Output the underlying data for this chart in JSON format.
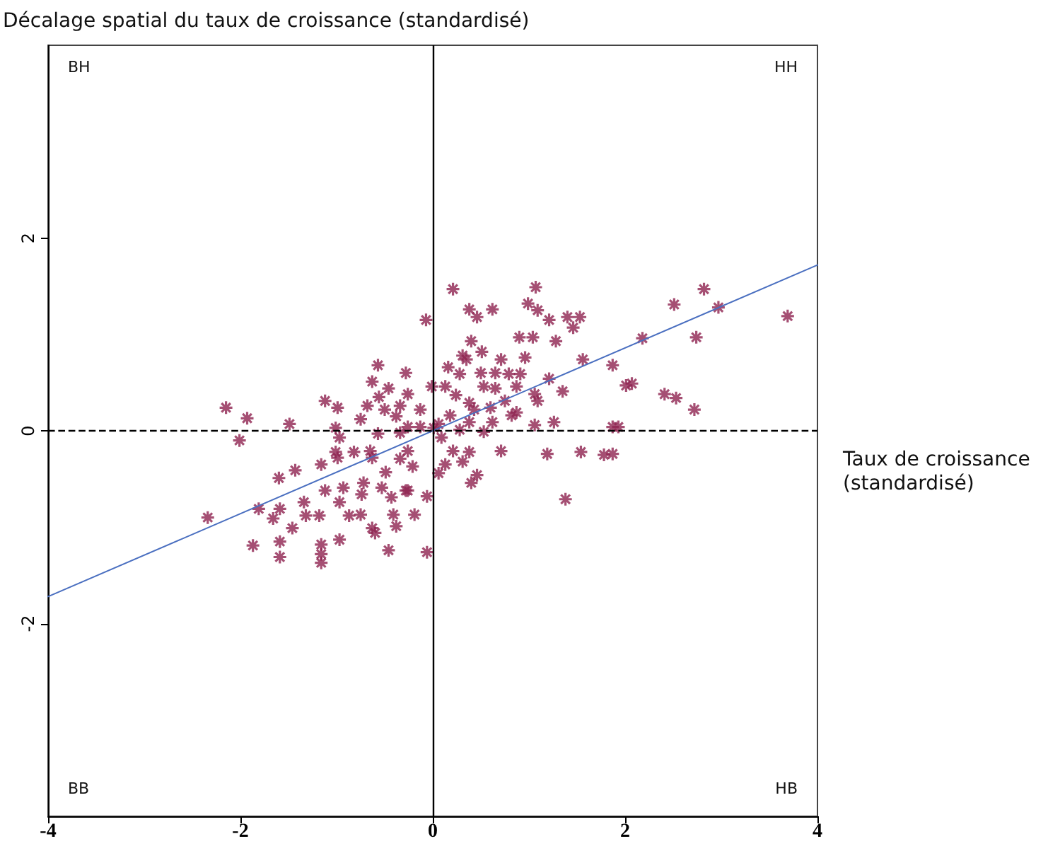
{
  "chart_data": {
    "type": "scatter",
    "ylabel": "Décalage spatial du taux de croissance (standardisé)",
    "xlabel": "Taux de croissance (standardisé)",
    "annotations": [
      "BH",
      "HH",
      "BB",
      "HB"
    ],
    "xlim": [
      -4,
      4
    ],
    "xticks": [
      -4,
      -2,
      0,
      2,
      4
    ],
    "ylim": [
      -4,
      4
    ],
    "yticks": [
      -2,
      0,
      2
    ],
    "grid": false,
    "ref_lines": [
      {
        "axis": "x",
        "value": 0,
        "color": "#000000",
        "line_style": "solid"
      },
      {
        "axis": "y",
        "value": 0,
        "color": "#000000",
        "line_style": "dashed"
      }
    ],
    "series": [
      {
        "color": "#8e2350",
        "marker": "cross",
        "x": [
          -2.15,
          -1.93,
          -2.01,
          -1.49,
          -2.34,
          -1.81,
          -1.6,
          -1.43,
          -1.16,
          -1.87,
          -1.59,
          -1.59,
          -1.59,
          -1.34,
          -1.32,
          -1.46,
          -1.66,
          -1.16,
          -1.16,
          -1.16,
          -1.12,
          -1.18,
          -0.97,
          -0.97,
          -0.93,
          -0.75,
          -0.74,
          -0.63,
          -0.46,
          -0.41,
          -0.53,
          -0.57,
          -0.63,
          -0.46,
          -0.56,
          -1.12,
          -0.99,
          -0.75,
          -0.68,
          -0.5,
          -1.01,
          -0.99,
          -0.82,
          -0.65,
          -0.63,
          -0.49,
          -0.34,
          -0.34,
          -0.28,
          -0.57,
          -0.38,
          -1.01,
          -0.34,
          -0.97,
          -0.72,
          -0.43,
          -0.28,
          -0.38,
          -0.6,
          -0.87,
          0.21,
          1.07,
          -0.07,
          0.38,
          0.46,
          0.62,
          0.99,
          1.09,
          1.21,
          1.4,
          1.53,
          1.46,
          0.9,
          1.04,
          1.28,
          0.4,
          0.96,
          1.56,
          0.31,
          0.35,
          0.51,
          0.71,
          0.16,
          0.28,
          0.5,
          0.65,
          0.79,
          0.91,
          1.21,
          -0.01,
          0.13,
          0.53,
          0.65,
          0.87,
          1.06,
          1.35,
          1.09,
          -0.26,
          -0.13,
          0.24,
          0.38,
          0.43,
          0.6,
          0.75,
          0.82,
          0.87,
          0.62,
          0.38,
          0.18,
          0.06,
          0.01,
          0.09,
          0.28,
          0.53,
          1.06,
          1.26,
          1.87,
          -0.13,
          -0.26,
          0.21,
          0.38,
          0.31,
          0.71,
          1.19,
          1.54,
          1.78,
          0.13,
          0.06,
          0.46,
          0.4,
          -0.06,
          -0.19,
          -0.26,
          -0.21,
          1.38,
          -0.06,
          -0.26,
          2.82,
          2.51,
          2.97,
          3.69,
          2.18,
          2.74,
          1.87,
          2.01,
          2.07,
          2.41,
          2.53,
          2.72,
          1.93,
          1.87
        ],
        "values": [
          0.24,
          0.13,
          -0.1,
          0.07,
          -0.9,
          -0.81,
          -0.49,
          -0.41,
          -0.35,
          -1.19,
          -1.31,
          -0.81,
          -1.15,
          -0.74,
          -0.88,
          -1.01,
          -0.91,
          -1.18,
          -1.28,
          -1.37,
          -0.62,
          -0.88,
          -0.74,
          -1.13,
          -0.59,
          -0.87,
          -0.66,
          -1.01,
          -1.24,
          -0.87,
          -0.59,
          0.68,
          0.51,
          0.44,
          0.35,
          0.31,
          0.24,
          0.12,
          0.26,
          0.22,
          -0.22,
          -0.28,
          -0.22,
          -0.21,
          -0.28,
          -0.43,
          -0.29,
          0.26,
          0.6,
          -0.03,
          0.15,
          0.03,
          -0.02,
          -0.07,
          -0.54,
          -0.69,
          -0.62,
          -0.99,
          -1.06,
          -0.88,
          1.47,
          1.49,
          1.15,
          1.26,
          1.18,
          1.26,
          1.32,
          1.25,
          1.15,
          1.18,
          1.18,
          1.07,
          0.97,
          0.97,
          0.93,
          0.93,
          0.76,
          0.74,
          0.78,
          0.74,
          0.82,
          0.74,
          0.66,
          0.59,
          0.6,
          0.6,
          0.59,
          0.59,
          0.54,
          0.46,
          0.46,
          0.46,
          0.44,
          0.46,
          0.38,
          0.41,
          0.31,
          0.38,
          0.22,
          0.37,
          0.29,
          0.22,
          0.24,
          0.31,
          0.16,
          0.19,
          0.09,
          0.09,
          0.16,
          0.07,
          0.03,
          -0.07,
          0.01,
          -0.01,
          0.06,
          0.09,
          0.04,
          0.04,
          0.04,
          -0.21,
          -0.22,
          -0.32,
          -0.21,
          -0.24,
          -0.22,
          -0.25,
          -0.35,
          -0.44,
          -0.46,
          -0.54,
          -0.68,
          -0.87,
          -0.62,
          -0.37,
          -0.71,
          -1.26,
          -0.21,
          1.47,
          1.31,
          1.28,
          1.19,
          0.96,
          0.97,
          0.68,
          0.47,
          0.49,
          0.38,
          0.34,
          0.22,
          0.04,
          -0.24
        ]
      },
      {
        "type": "line",
        "color": "#4a6fc0",
        "marker": "none",
        "line_style": "solid",
        "x": [
          -4,
          4
        ],
        "values": [
          -1.72,
          1.72
        ]
      }
    ]
  }
}
